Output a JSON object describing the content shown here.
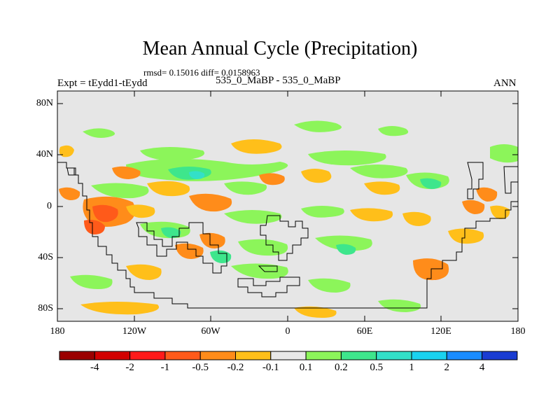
{
  "title": "Mean Annual Cycle (Precipitation)",
  "stats": "rmsd= 0.15016 diff= 0.0158963",
  "left_label": "Expt = tEydd1-tEydd",
  "center_label": "535_0_MaBP - 535_0_MaBP",
  "season": "ANN",
  "lat_ticks": [
    "80N",
    "40N",
    "0",
    "40S",
    "80S"
  ],
  "lon_ticks": [
    "180",
    "120W",
    "60W",
    "0",
    "60E",
    "120E",
    "180"
  ],
  "colorbar": {
    "labels": [
      "-4",
      "-2",
      "-1",
      "-0.5",
      "-0.2",
      "-0.1",
      "0.1",
      "0.2",
      "0.5",
      "1",
      "2",
      "4"
    ],
    "colors": [
      "#9b0000",
      "#d20000",
      "#ff1a1a",
      "#ff5a1a",
      "#ff8c1a",
      "#ffbf1a",
      "#e8e8e8",
      "#8cf55a",
      "#3ee68c",
      "#33e0c8",
      "#1ad2f0",
      "#1a8cff",
      "#1a3cd2"
    ]
  },
  "field_colors": {
    "background": "#e6e6e6",
    "coast": "#000000"
  }
}
